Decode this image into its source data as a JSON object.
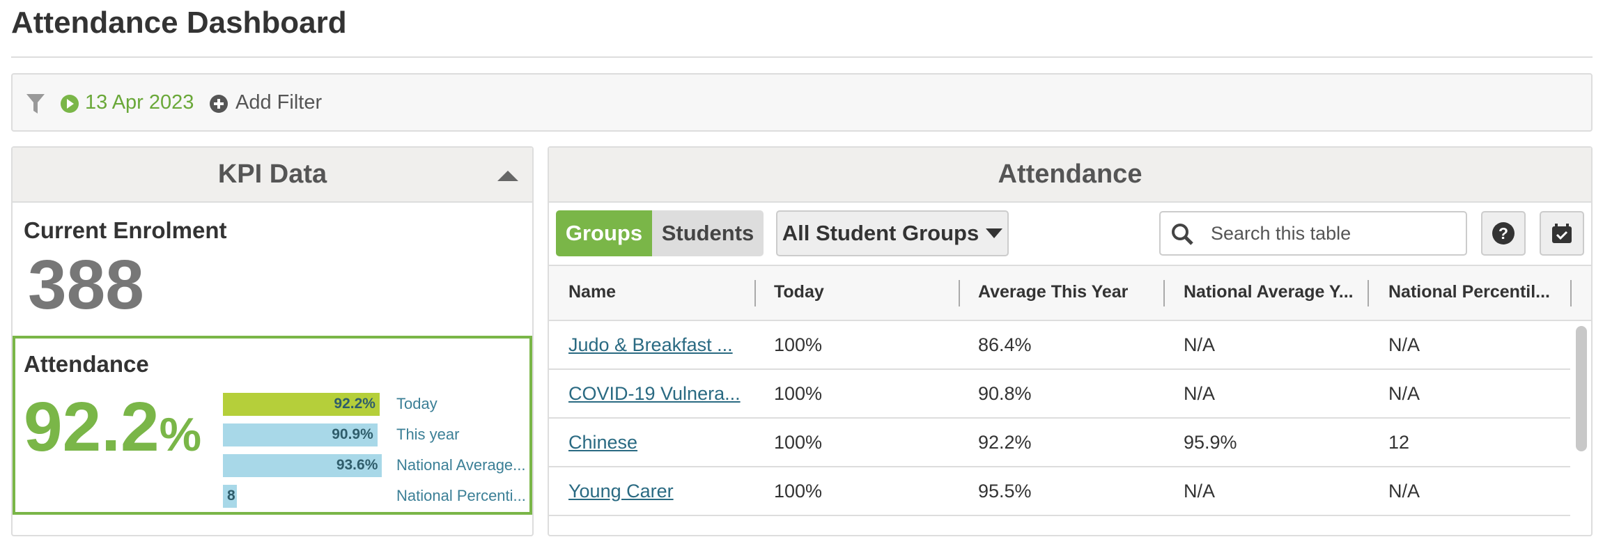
{
  "header": {
    "title": "Attendance Dashboard"
  },
  "filters": {
    "date": "13 Apr 2023",
    "add": "Add Filter"
  },
  "kpi": {
    "title": "KPI Data",
    "enrolment_label": "Current Enrolment",
    "enrolment": "388",
    "attendance_label": "Attendance",
    "attendance_value": "92.2",
    "attendance_unit": "%",
    "bars": [
      {
        "label": "Today",
        "value": 92.2,
        "value_label": "92.2%"
      },
      {
        "label": "This year",
        "value": 90.9,
        "value_label": "90.9%"
      },
      {
        "label": "National Average...",
        "value": 93.6,
        "value_label": "93.6%"
      },
      {
        "label": "National Percenti...",
        "value": 8
      }
    ]
  },
  "attendance": {
    "title": "Attendance",
    "tabs": [
      "Groups",
      "Students"
    ],
    "group_select": "All Student Groups",
    "search_placeholder": "Search this table",
    "columns": [
      "Name",
      "Today",
      "Average This Year",
      "National Average Y...",
      "National Percentil..."
    ],
    "rows": [
      [
        "Judo & Breakfast ...",
        "100%",
        "86.4%",
        "N/A",
        "N/A"
      ],
      [
        "COVID-19 Vulnera...",
        "100%",
        "90.8%",
        "N/A",
        "N/A"
      ],
      [
        "Chinese",
        "100%",
        "92.2%",
        "95.9%",
        "12"
      ],
      [
        "Young Carer",
        "100%",
        "95.5%",
        "N/A",
        "N/A"
      ]
    ]
  }
}
